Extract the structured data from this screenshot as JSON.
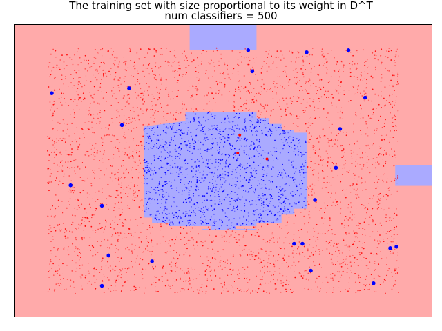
{
  "chart_data": {
    "type": "scatter",
    "title": "The training set with size proportional to its weight in D^T",
    "subtitle": "num classifiers = 500",
    "xlabel": "",
    "ylabel": "",
    "xlim": [
      0,
      1
    ],
    "ylim": [
      0,
      1
    ],
    "axes_ticks_visible": false,
    "grid": false,
    "legend": "none",
    "colors": {
      "class_neg_region": "#ffaaaa",
      "class_pos_region": "#aaaaff",
      "class_neg_point": "#ff0000",
      "class_pos_point": "#0000ff"
    },
    "decision_regions": {
      "background_class": "negative",
      "positive_regions": [
        {
          "shape": "rectangle",
          "x": [
            0.42,
            0.58
          ],
          "y": [
            0.914,
            1.0
          ]
        },
        {
          "shape": "rectangle",
          "x": [
            0.912,
            1.0
          ],
          "y": [
            0.448,
            0.52
          ]
        },
        {
          "shape": "rectangle",
          "x": [
            0.45,
            0.58
          ],
          "y": [
            0.301,
            0.297
          ]
        },
        {
          "shape": "polygon",
          "points": [
            [
              0.31,
              0.651
            ],
            [
              0.41,
              0.67
            ],
            [
              0.41,
              0.7
            ],
            [
              0.58,
              0.7
            ],
            [
              0.58,
              0.68
            ],
            [
              0.61,
              0.68
            ],
            [
              0.61,
              0.66
            ],
            [
              0.64,
              0.66
            ],
            [
              0.64,
              0.64
            ],
            [
              0.67,
              0.64
            ],
            [
              0.67,
              0.63
            ],
            [
              0.7,
              0.63
            ],
            [
              0.7,
              0.37
            ],
            [
              0.67,
              0.37
            ],
            [
              0.67,
              0.35
            ],
            [
              0.64,
              0.35
            ],
            [
              0.64,
              0.32
            ],
            [
              0.58,
              0.32
            ],
            [
              0.58,
              0.31
            ],
            [
              0.53,
              0.31
            ],
            [
              0.53,
              0.3
            ],
            [
              0.47,
              0.3
            ],
            [
              0.47,
              0.31
            ],
            [
              0.37,
              0.31
            ],
            [
              0.37,
              0.32
            ],
            [
              0.33,
              0.32
            ],
            [
              0.33,
              0.34
            ],
            [
              0.31,
              0.34
            ]
          ]
        }
      ]
    },
    "series": [
      {
        "class": "negative",
        "color": "#ff0000",
        "distribution": "uniform over x 0.08–0.92, y 0.08–0.92, outside central region",
        "count_estimate": 3000
      },
      {
        "class": "positive",
        "color": "#0000ff",
        "distribution": "central region x 0.31–0.70, y 0.31–0.70",
        "count_estimate": 1400
      }
    ],
    "highlighted_points": [
      {
        "x": 0.09,
        "y": 0.765,
        "class": "positive"
      },
      {
        "x": 0.275,
        "y": 0.782,
        "class": "positive"
      },
      {
        "x": 0.56,
        "y": 0.912,
        "class": "positive"
      },
      {
        "x": 0.7,
        "y": 0.905,
        "class": "positive"
      },
      {
        "x": 0.8,
        "y": 0.912,
        "class": "positive"
      },
      {
        "x": 0.84,
        "y": 0.75,
        "class": "positive"
      },
      {
        "x": 0.57,
        "y": 0.84,
        "class": "positive"
      },
      {
        "x": 0.258,
        "y": 0.656,
        "class": "positive"
      },
      {
        "x": 0.78,
        "y": 0.643,
        "class": "positive"
      },
      {
        "x": 0.135,
        "y": 0.45,
        "class": "positive"
      },
      {
        "x": 0.21,
        "y": 0.38,
        "class": "positive"
      },
      {
        "x": 0.226,
        "y": 0.21,
        "class": "positive"
      },
      {
        "x": 0.33,
        "y": 0.19,
        "class": "positive"
      },
      {
        "x": 0.71,
        "y": 0.158,
        "class": "positive"
      },
      {
        "x": 0.86,
        "y": 0.115,
        "class": "positive"
      },
      {
        "x": 0.21,
        "y": 0.106,
        "class": "positive"
      },
      {
        "x": 0.67,
        "y": 0.25,
        "class": "positive"
      },
      {
        "x": 0.69,
        "y": 0.25,
        "class": "positive"
      },
      {
        "x": 0.9,
        "y": 0.235,
        "class": "positive"
      },
      {
        "x": 0.915,
        "y": 0.24,
        "class": "positive"
      },
      {
        "x": 0.77,
        "y": 0.51,
        "class": "positive"
      },
      {
        "x": 0.72,
        "y": 0.4,
        "class": "positive"
      },
      {
        "x": 0.54,
        "y": 0.622,
        "class": "negative"
      },
      {
        "x": 0.535,
        "y": 0.56,
        "class": "negative"
      },
      {
        "x": 0.605,
        "y": 0.54,
        "class": "negative"
      }
    ]
  }
}
